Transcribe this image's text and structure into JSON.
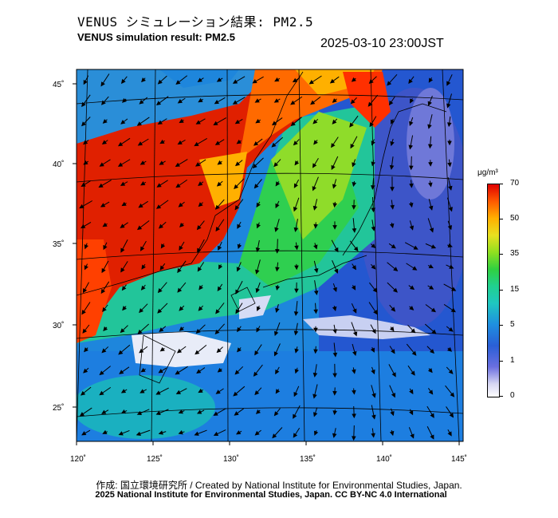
{
  "header": {
    "title_jp": "VENUS シミュレーション結果: PM2.5",
    "title_en": "VENUS simulation result: PM2.5",
    "timestamp": "2025-03-10 23:00JST"
  },
  "axes": {
    "lon_ticks": [
      "120˚",
      "125˚",
      "130˚",
      "135˚",
      "140˚",
      "145˚"
    ],
    "lat_ticks": [
      "45˚",
      "40˚",
      "35˚",
      "30˚",
      "25˚"
    ]
  },
  "colorbar": {
    "unit": "μg/m³",
    "labels": [
      "70",
      "50",
      "35",
      "15",
      "5",
      "1",
      "0"
    ],
    "colors": [
      "#e00000",
      "#ff5a00",
      "#ffb000",
      "#e8e020",
      "#30d040",
      "#1fc7c0",
      "#2a5fd6",
      "#6b6fe0",
      "#ffffff"
    ]
  },
  "footer": {
    "credit": "作成: 国立環境研究所 / Created by National Institute for Environmental Studies, Japan.",
    "copyright": "2025 National Institute for Environmental Studies, Japan. CC BY-NC 4.0 International"
  }
}
